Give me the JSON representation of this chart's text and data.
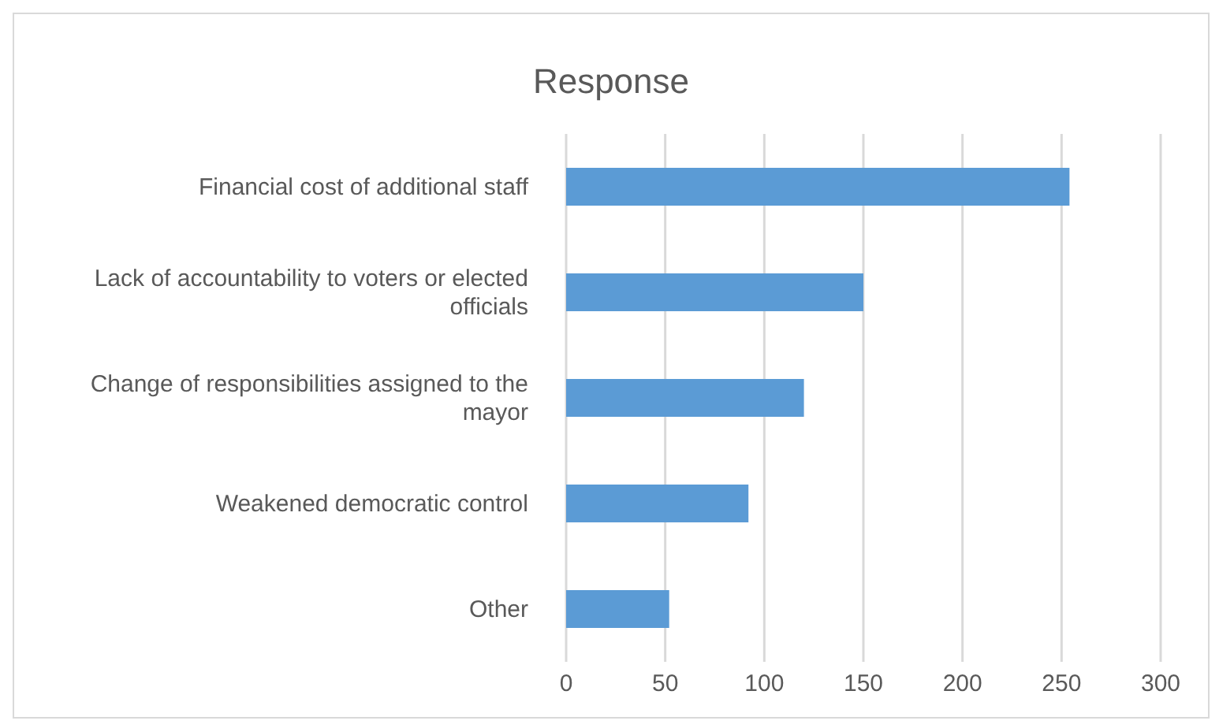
{
  "chart_data": {
    "type": "bar",
    "title": "Response",
    "orientation": "horizontal",
    "categories": [
      "Financial cost of additional staff",
      "Lack of accountability to voters or elected officials",
      "Change of responsibilities assigned to the mayor",
      "Weakened democratic control",
      "Other"
    ],
    "values": [
      254,
      150,
      120,
      92,
      52
    ],
    "color": "#5b9bd5",
    "xlim": [
      0,
      300
    ],
    "xticks": [
      0,
      50,
      100,
      150,
      200,
      250,
      300
    ],
    "grid": "x"
  }
}
